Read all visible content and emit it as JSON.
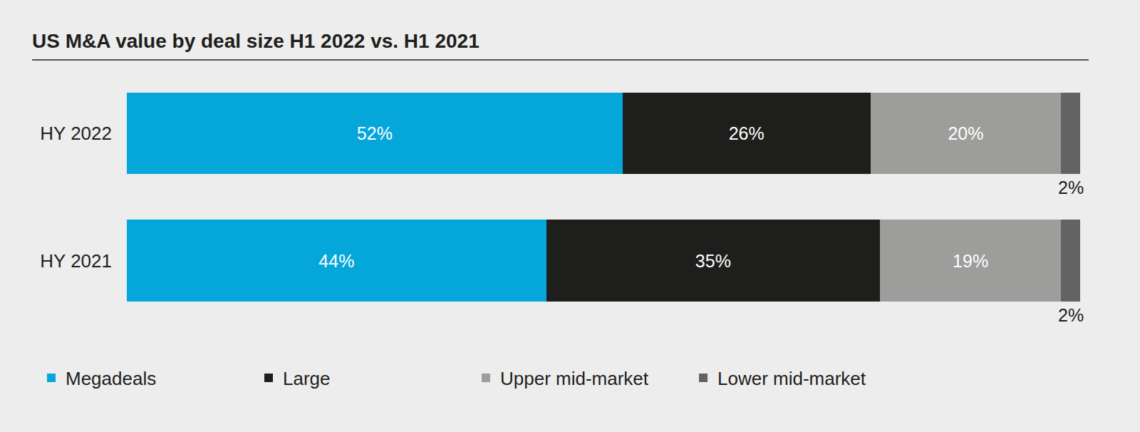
{
  "chart_data": {
    "type": "bar",
    "title": "US M&A value by deal size H1 2022 vs. H1 2021",
    "orientation": "horizontal",
    "stacked": true,
    "data_labels": true,
    "tick_labels": "y",
    "legend": "bottom",
    "categories": [
      "HY 2022",
      "HY 2021"
    ],
    "xlim": [
      0,
      100
    ],
    "series": [
      {
        "name": "Megadeals",
        "color": "#05a6da",
        "values": [
          52,
          44
        ],
        "value_labels": [
          "52%",
          "44%"
        ]
      },
      {
        "name": "Large",
        "color": "#1e1e1c",
        "values": [
          26,
          35
        ],
        "value_labels": [
          "26%",
          "35%"
        ]
      },
      {
        "name": "Upper mid-market",
        "color": "#9d9d9c",
        "values": [
          20,
          19
        ],
        "value_labels": [
          "20%",
          "19%"
        ]
      },
      {
        "name": "Lower mid-market",
        "color": "#636363",
        "values": [
          2,
          2
        ],
        "value_labels": [
          "2%",
          "2%"
        ]
      }
    ]
  }
}
